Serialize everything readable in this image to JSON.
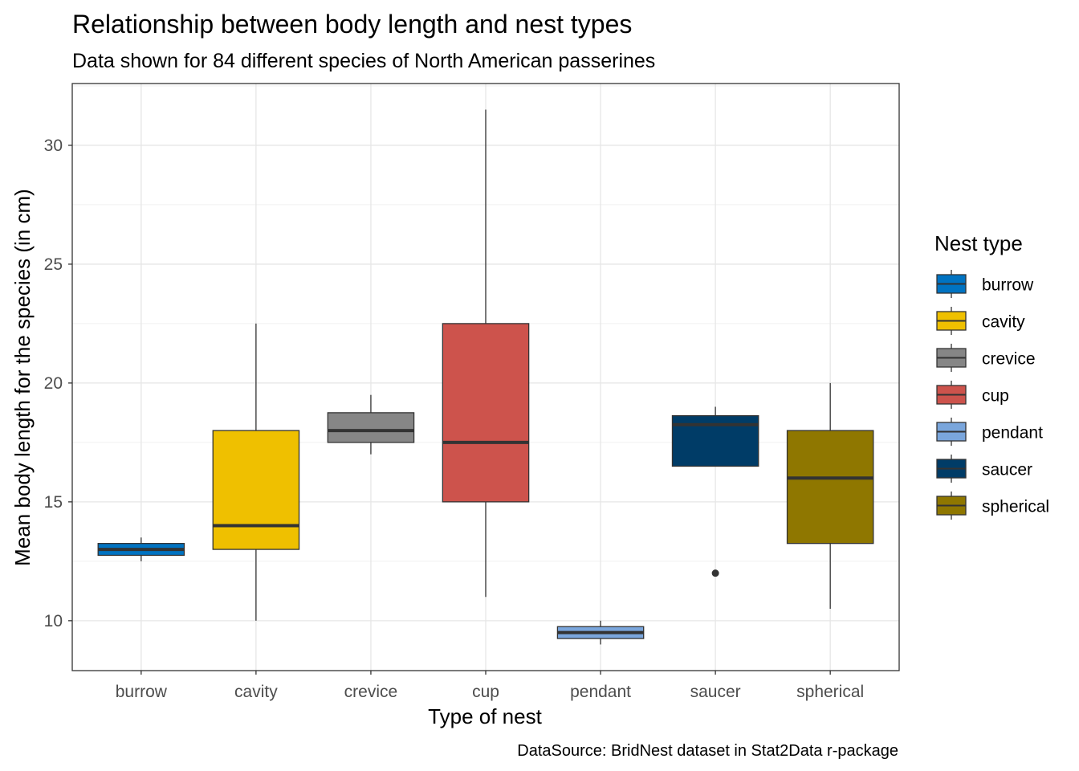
{
  "chart_data": {
    "type": "boxplot",
    "title": "Relationship between body length and nest types",
    "subtitle": "Data shown for 84 different species of North American passerines",
    "xlabel": "Type of nest",
    "ylabel": "Mean body length for the species (in cm)",
    "caption": "DataSource: BridNest dataset in Stat2Data r-package",
    "ylim": [
      7.9,
      32.6
    ],
    "y_ticks": [
      10,
      15,
      20,
      25,
      30
    ],
    "grid": true,
    "legend": {
      "title": "Nest type",
      "position": "right"
    },
    "categories": [
      "burrow",
      "cavity",
      "crevice",
      "cup",
      "pendant",
      "saucer",
      "spherical"
    ],
    "boxes": [
      {
        "name": "burrow",
        "color": "#0073C2",
        "min": 12.5,
        "q1": 12.75,
        "median": 13.0,
        "q3": 13.25,
        "max": 13.5,
        "outliers": []
      },
      {
        "name": "cavity",
        "color": "#EFC000",
        "min": 10.0,
        "q1": 13.0,
        "median": 14.0,
        "q3": 18.0,
        "max": 22.5,
        "outliers": []
      },
      {
        "name": "crevice",
        "color": "#868686",
        "min": 17.0,
        "q1": 17.5,
        "median": 18.0,
        "q3": 18.75,
        "max": 19.5,
        "outliers": []
      },
      {
        "name": "cup",
        "color": "#CD534C",
        "min": 11.0,
        "q1": 15.0,
        "median": 17.5,
        "q3": 22.5,
        "max": 31.5,
        "outliers": []
      },
      {
        "name": "pendant",
        "color": "#7AA6DC",
        "min": 9.0,
        "q1": 9.25,
        "median": 9.5,
        "q3": 9.75,
        "max": 10.0,
        "outliers": []
      },
      {
        "name": "saucer",
        "color": "#003C67",
        "min": 16.5,
        "q1": 16.5,
        "median": 18.25,
        "q3": 18.625,
        "max": 19.0,
        "outliers": [
          12.0
        ]
      },
      {
        "name": "spherical",
        "color": "#8F7700",
        "min": 10.5,
        "q1": 13.25,
        "median": 16.0,
        "q3": 18.0,
        "max": 20.0,
        "outliers": []
      }
    ]
  }
}
